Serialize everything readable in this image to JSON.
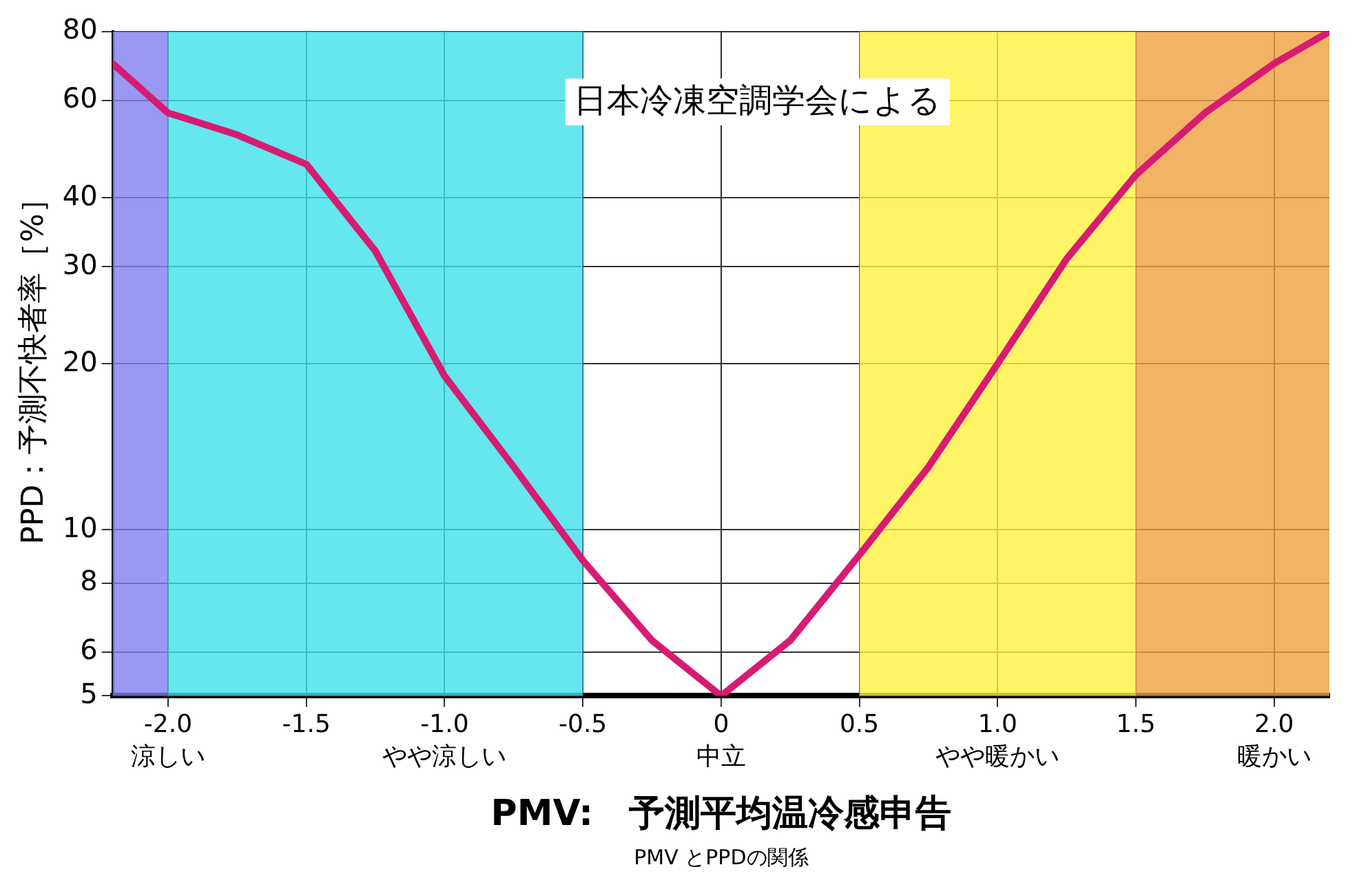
{
  "chart_data": {
    "type": "line",
    "xlabel": "PMV:　予測平均温冷感申告",
    "ylabel": "PPD：予測不快者率［%］",
    "x": [
      -2.2,
      -2.0,
      -1.75,
      -1.5,
      -1.25,
      -1.0,
      -0.75,
      -0.5,
      -0.25,
      0,
      0.25,
      0.5,
      0.75,
      1.0,
      1.25,
      1.5,
      1.75,
      2.0,
      2.2
    ],
    "series": [
      {
        "color": "#d81b72",
        "values": [
          70,
          57,
          52,
          46,
          32,
          19,
          13,
          8.8,
          6.3,
          5,
          6.3,
          9,
          13,
          20,
          31,
          44,
          57,
          70,
          80
        ]
      }
    ],
    "xlim": [
      -2.2,
      2.2
    ],
    "ylim": [
      5,
      80
    ],
    "log": "y",
    "xticks": [
      {
        "value": -2,
        "label": "-2.0"
      },
      {
        "value": -1.5,
        "label": "-1.5"
      },
      {
        "value": -1,
        "label": "-1.0"
      },
      {
        "value": -0.5,
        "label": "-0.5"
      },
      0,
      0.5,
      {
        "value": 1,
        "label": "1.0"
      },
      1.5,
      {
        "value": 2,
        "label": "2.0"
      }
    ],
    "yticks": [
      5,
      6,
      8,
      10,
      20,
      30,
      40,
      60,
      80
    ],
    "grid": true,
    "legend": false,
    "marker": "none",
    "line_style": "solid",
    "bands": [
      {
        "axis": "x",
        "from": -2.2,
        "to": -2.0,
        "color": "#8080f0"
      },
      {
        "axis": "x",
        "from": -2.0,
        "to": -0.5,
        "color": "#40e0e8"
      },
      {
        "axis": "x",
        "from": 0.5,
        "to": 1.5,
        "color": "#fff040"
      },
      {
        "axis": "x",
        "from": 1.5,
        "to": 2.2,
        "color": "#f0a040"
      }
    ],
    "annotations": [
      "日本冷凍空調学会による",
      "PMV とPPDの関係",
      "涼しい",
      "やや涼しい",
      "中立",
      "やや暖かい",
      "暖かい"
    ]
  }
}
